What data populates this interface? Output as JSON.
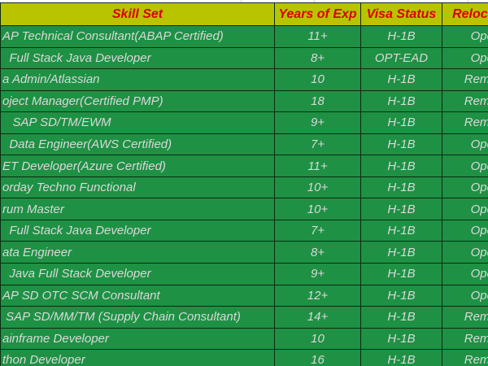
{
  "header": {
    "columns": [
      "Skill Set",
      "Years of Exp",
      "Visa Status",
      "Relocation"
    ]
  },
  "rows": [
    {
      "skill": "AP Technical Consultant(ABAP Certified)",
      "years": "11+",
      "visa": "H-1B",
      "reloc": "Open"
    },
    {
      "skill": "  Full Stack Java Developer",
      "years": "8+",
      "visa": "OPT-EAD",
      "reloc": "Open"
    },
    {
      "skill": "a Admin/Atlassian",
      "years": "10",
      "visa": "H-1B",
      "reloc": "Remote"
    },
    {
      "skill": "oject Manager(Certified PMP)",
      "years": "18",
      "visa": "H-1B",
      "reloc": "Remote"
    },
    {
      "skill": "   SAP SD/TM/EWM",
      "years": "9+",
      "visa": "H-1B",
      "reloc": "Remote"
    },
    {
      "skill": "  Data Engineer(AWS Certified)",
      "years": "7+",
      "visa": "H-1B",
      "reloc": "Open"
    },
    {
      "skill": "ET Developer(Azure Certified)",
      "years": "11+",
      "visa": "H-1B",
      "reloc": "Open"
    },
    {
      "skill": "orday Techno Functional",
      "years": "10+",
      "visa": "H-1B",
      "reloc": "Open"
    },
    {
      "skill": "rum Master",
      "years": "10+",
      "visa": "H-1B",
      "reloc": "Open"
    },
    {
      "skill": "  Full Stack Java Developer",
      "years": "7+",
      "visa": "H-1B",
      "reloc": "Open"
    },
    {
      "skill": "ata Engineer",
      "years": "8+",
      "visa": "H-1B",
      "reloc": "Open"
    },
    {
      "skill": "  Java Full Stack Developer",
      "years": "9+",
      "visa": "H-1B",
      "reloc": "Open"
    },
    {
      "skill": "AP SD OTC SCM Consultant",
      "years": "12+",
      "visa": "H-1B",
      "reloc": "Open"
    },
    {
      "skill": " SAP SD/MM/TM (Supply Chain Consultant)",
      "years": "14+",
      "visa": "H-1B",
      "reloc": "Remote"
    },
    {
      "skill": "ainframe Developer",
      "years": "10",
      "visa": "H-1B",
      "reloc": "Remote"
    },
    {
      "skill": "thon Developer",
      "years": "16",
      "visa": "H-1B",
      "reloc": "Remote"
    }
  ],
  "colors": {
    "header_bg": "#b8c400",
    "header_text": "#da0000",
    "cell_bg": "#1e9144",
    "cell_text": "#d9d9d9",
    "cell_border": "#0b2c12"
  }
}
